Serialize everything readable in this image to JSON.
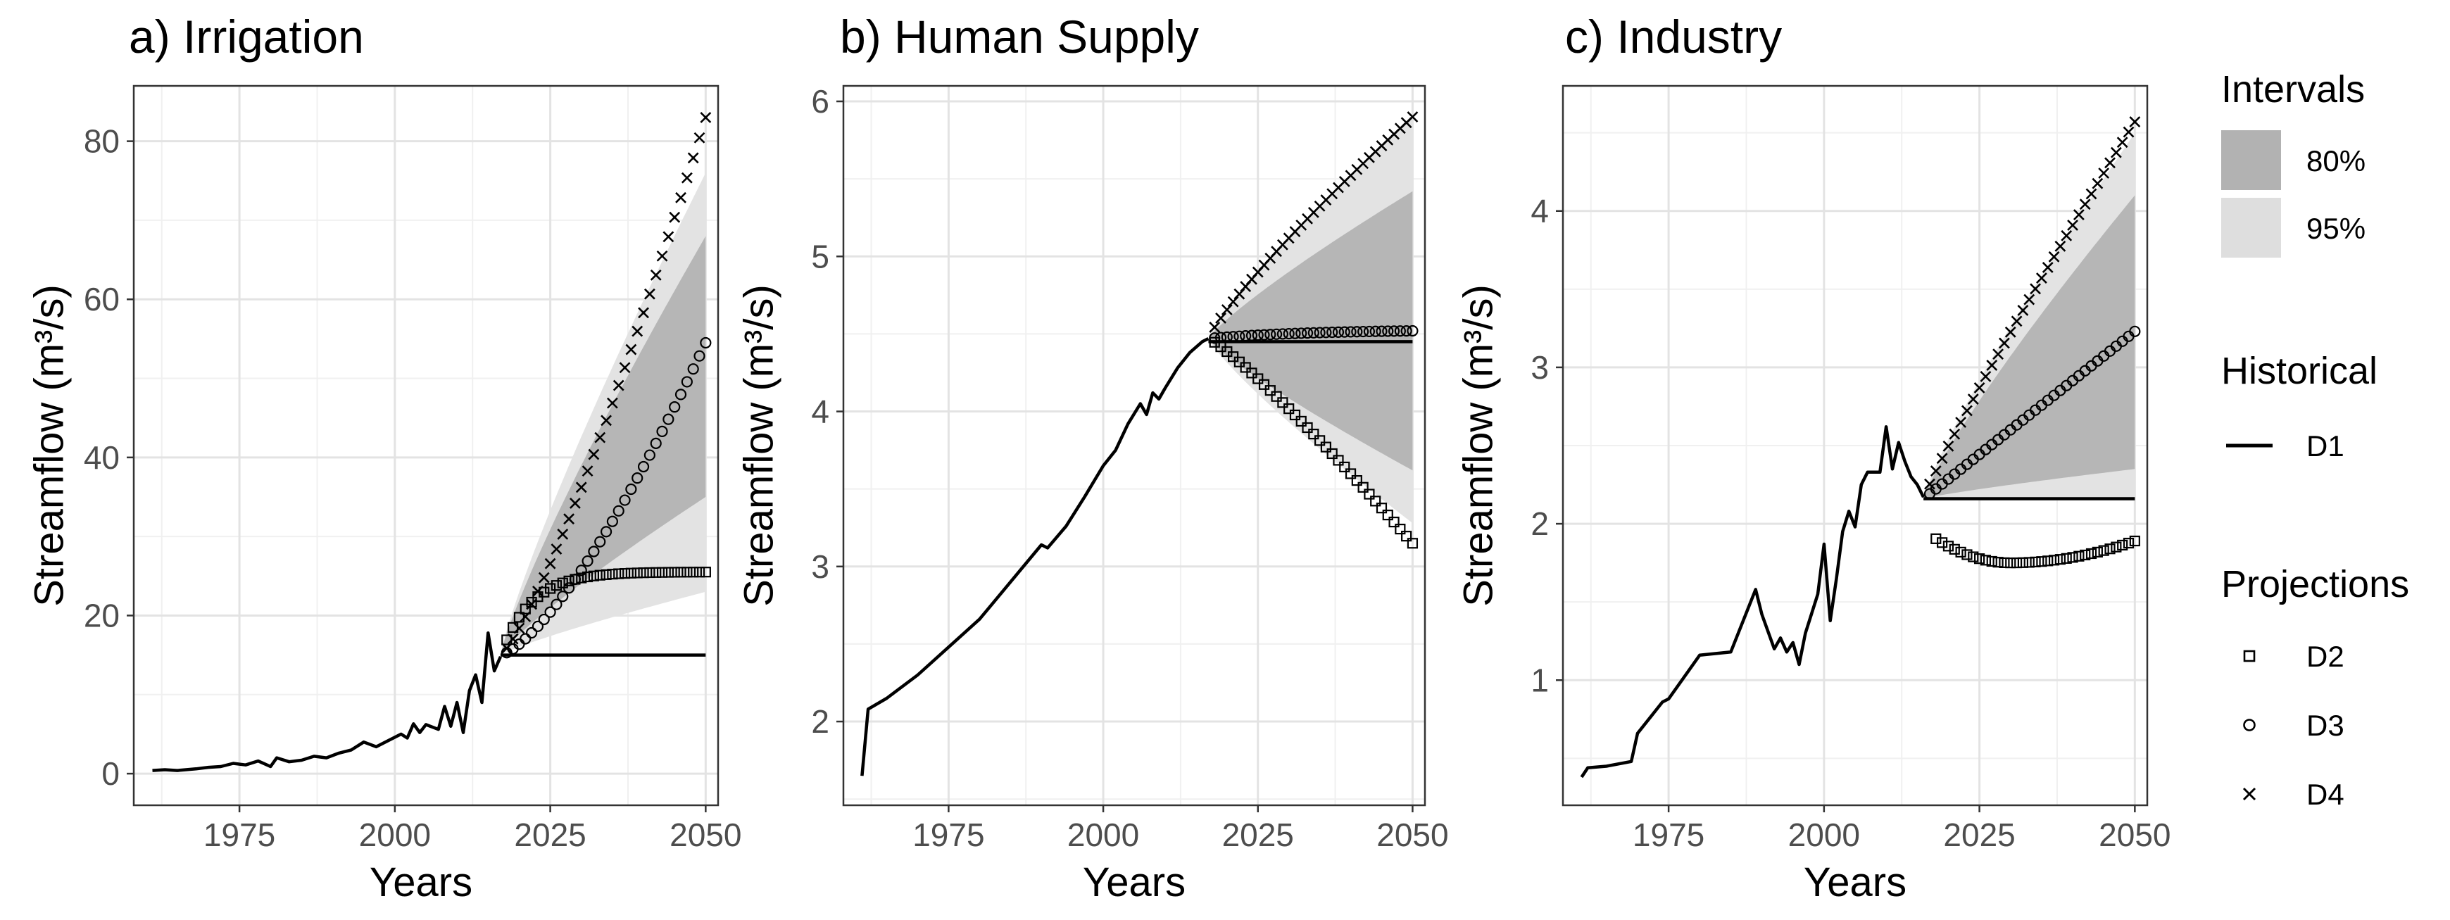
{
  "figure": {
    "legend": {
      "intervals_title": "Intervals",
      "intervals": [
        {
          "label": "80%",
          "color": "#b2b2b2"
        },
        {
          "label": "95%",
          "color": "#dedede"
        }
      ],
      "historical_title": "Historical",
      "historical": [
        {
          "label": "D1",
          "marker": "line"
        }
      ],
      "projections_title": "Projections",
      "projections": [
        {
          "label": "D2",
          "marker": "square"
        },
        {
          "label": "D3",
          "marker": "circle"
        },
        {
          "label": "D4",
          "marker": "cross"
        }
      ]
    }
  },
  "chart_data": [
    {
      "type": "line",
      "title": "a) Irrigation",
      "xlabel": "Years",
      "ylabel": "Streamflow (m³/s)",
      "xlim": [
        1958,
        2052
      ],
      "ylim": [
        -4,
        87
      ],
      "xticks": [
        1975,
        2000,
        2025,
        2050
      ],
      "yticks": [
        0,
        20,
        40,
        60,
        80
      ],
      "grid": true,
      "historical": {
        "name": "D1",
        "points": [
          [
            1961,
            0.4
          ],
          [
            1963,
            0.5
          ],
          [
            1965,
            0.4
          ],
          [
            1968,
            0.6
          ],
          [
            1970,
            0.8
          ],
          [
            1972,
            0.9
          ],
          [
            1974,
            1.3
          ],
          [
            1976,
            1.1
          ],
          [
            1978,
            1.6
          ],
          [
            1980,
            0.9
          ],
          [
            1981,
            2.0
          ],
          [
            1983,
            1.5
          ],
          [
            1985,
            1.7
          ],
          [
            1987,
            2.2
          ],
          [
            1989,
            2.0
          ],
          [
            1991,
            2.6
          ],
          [
            1993,
            3.0
          ],
          [
            1995,
            4.0
          ],
          [
            1997,
            3.4
          ],
          [
            1999,
            4.2
          ],
          [
            2001,
            5.0
          ],
          [
            2002,
            4.5
          ],
          [
            2003,
            6.3
          ],
          [
            2004,
            5.2
          ],
          [
            2005,
            6.2
          ],
          [
            2007,
            5.6
          ],
          [
            2008,
            8.5
          ],
          [
            2009,
            6.0
          ],
          [
            2010,
            9.0
          ],
          [
            2011,
            5.2
          ],
          [
            2012,
            10.5
          ],
          [
            2013,
            12.5
          ],
          [
            2014,
            9.0
          ],
          [
            2015,
            17.8
          ],
          [
            2016,
            13.0
          ],
          [
            2017,
            14.8
          ]
        ]
      },
      "constant": {
        "name": "D1",
        "from": 2017,
        "to": 2050,
        "value": 15.0
      },
      "projections": {
        "start": 2017,
        "end": 2050,
        "base": 15.0,
        "D2": {
          "end": 25.5,
          "shape": "saturating",
          "rate": 0.15
        },
        "D3": {
          "end": 54.5,
          "shape": "convex",
          "power": 1.4
        },
        "D4": {
          "end": 83.0,
          "shape": "convex",
          "power": 1.25
        }
      },
      "bands": {
        "base": 15.0,
        "p95": {
          "lower_end": 23.0,
          "upper_end": 76.0
        },
        "p80": {
          "lower_end": 35.0,
          "upper_end": 68.0
        }
      }
    },
    {
      "type": "line",
      "title": "b) Human Supply",
      "xlabel": "Years",
      "ylabel": "Streamflow (m³/s)",
      "xlim": [
        1958,
        2052
      ],
      "ylim": [
        1.46,
        6.1
      ],
      "xticks": [
        1975,
        2000,
        2025,
        2050
      ],
      "yticks": [
        2,
        3,
        4,
        5,
        6
      ],
      "grid": true,
      "historical": {
        "name": "D1",
        "points": [
          [
            1961,
            1.65
          ],
          [
            1962,
            2.08
          ],
          [
            1965,
            2.15
          ],
          [
            1970,
            2.3
          ],
          [
            1975,
            2.48
          ],
          [
            1980,
            2.66
          ],
          [
            1985,
            2.9
          ],
          [
            1990,
            3.14
          ],
          [
            1991,
            3.12
          ],
          [
            1994,
            3.26
          ],
          [
            1997,
            3.45
          ],
          [
            2000,
            3.65
          ],
          [
            2002,
            3.75
          ],
          [
            2004,
            3.92
          ],
          [
            2006,
            4.05
          ],
          [
            2007,
            3.98
          ],
          [
            2008,
            4.12
          ],
          [
            2009,
            4.08
          ],
          [
            2010,
            4.15
          ],
          [
            2012,
            4.28
          ],
          [
            2014,
            4.38
          ],
          [
            2016,
            4.45
          ],
          [
            2017,
            4.47
          ]
        ]
      },
      "constant": {
        "name": "D1",
        "from": 2017,
        "to": 2050,
        "value": 4.45
      },
      "projections": {
        "start": 2017,
        "end": 2050,
        "base": 4.47,
        "D2": {
          "end": 3.15,
          "shape": "concave_down_start",
          "power": 1.15
        },
        "D3": {
          "end": 4.52,
          "shape": "saturating",
          "rate": 0.5
        },
        "D4": {
          "end": 5.9,
          "shape": "concave",
          "power": 0.85
        }
      },
      "bands": {
        "base": 4.47,
        "p95": {
          "lower_end": 3.28,
          "upper_end": 5.9
        },
        "p80": {
          "lower_end": 3.62,
          "upper_end": 5.42
        }
      }
    },
    {
      "type": "line",
      "title": "c) Industry",
      "xlabel": "Years",
      "ylabel": "Streamflow (m³/s)",
      "xlim": [
        1958,
        2052
      ],
      "ylim": [
        0.2,
        4.8
      ],
      "xticks": [
        1975,
        2000,
        2025,
        2050
      ],
      "yticks": [
        1,
        2,
        3,
        4
      ],
      "grid": true,
      "historical": {
        "name": "D1",
        "points": [
          [
            1961,
            0.38
          ],
          [
            1962,
            0.44
          ],
          [
            1965,
            0.45
          ],
          [
            1969,
            0.48
          ],
          [
            1970,
            0.66
          ],
          [
            1974,
            0.86
          ],
          [
            1975,
            0.88
          ],
          [
            1980,
            1.16
          ],
          [
            1985,
            1.18
          ],
          [
            1989,
            1.58
          ],
          [
            1990,
            1.42
          ],
          [
            1992,
            1.2
          ],
          [
            1993,
            1.27
          ],
          [
            1994,
            1.18
          ],
          [
            1995,
            1.24
          ],
          [
            1996,
            1.1
          ],
          [
            1997,
            1.3
          ],
          [
            1999,
            1.55
          ],
          [
            2000,
            1.87
          ],
          [
            2001,
            1.38
          ],
          [
            2002,
            1.65
          ],
          [
            2003,
            1.95
          ],
          [
            2004,
            2.08
          ],
          [
            2005,
            1.98
          ],
          [
            2006,
            2.25
          ],
          [
            2007,
            2.33
          ],
          [
            2009,
            2.33
          ],
          [
            2010,
            2.62
          ],
          [
            2011,
            2.35
          ],
          [
            2012,
            2.52
          ],
          [
            2013,
            2.4
          ],
          [
            2014,
            2.3
          ],
          [
            2015,
            2.25
          ],
          [
            2016,
            2.17
          ]
        ]
      },
      "constant": {
        "name": "D1",
        "from": 2016,
        "to": 2050,
        "value": 2.16
      },
      "projections": {
        "start": 2016,
        "end": 2050,
        "base": 2.16,
        "D2": {
          "end": 1.89,
          "shape": "u_shape",
          "start_value": 1.96,
          "min_value": 1.75,
          "min_year": 2030
        },
        "D3": {
          "end": 3.23,
          "shape": "linear"
        },
        "D4": {
          "end": 4.57,
          "shape": "concave",
          "power": 0.92
        }
      },
      "bands": {
        "base": 2.16,
        "p95": {
          "lower_end": 2.15,
          "upper_end": 4.5
        },
        "p80": {
          "lower_end": 2.35,
          "upper_end": 4.1
        }
      }
    }
  ]
}
